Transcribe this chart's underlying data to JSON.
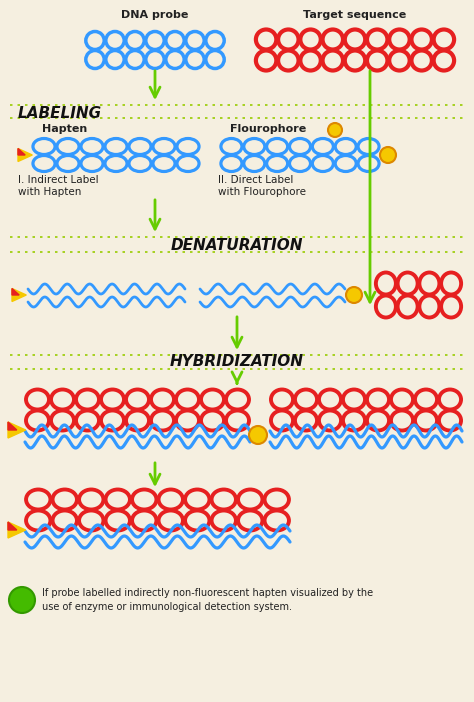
{
  "bg_color": "#f5efe0",
  "dna_blue": "#3399ff",
  "dna_red": "#e62020",
  "arrow_color": "#66cc00",
  "dot_color": "#99cc00",
  "text_color": "#222222",
  "label_color": "#111111",
  "fluoro_color": "#f5c800",
  "fluoro_edge": "#dd8800",
  "green_fill": "#44bb00",
  "texts": {
    "dna_probe": "DNA probe",
    "target_seq": "Target sequence",
    "labeling": "LABELING",
    "hapten": "Hapten",
    "flourophore": "Flourophore",
    "indirect": "I. Indirect Label\nwith Hapten",
    "direct": "II. Direct Label\nwith Flourophore",
    "denaturation": "DENATURATION",
    "hybridization": "HYBRIDIZATION",
    "footnote": "If probe labelled indirectly non-fluorescent hapten visualized by the\nuse of enzyme or immunological detection system."
  }
}
